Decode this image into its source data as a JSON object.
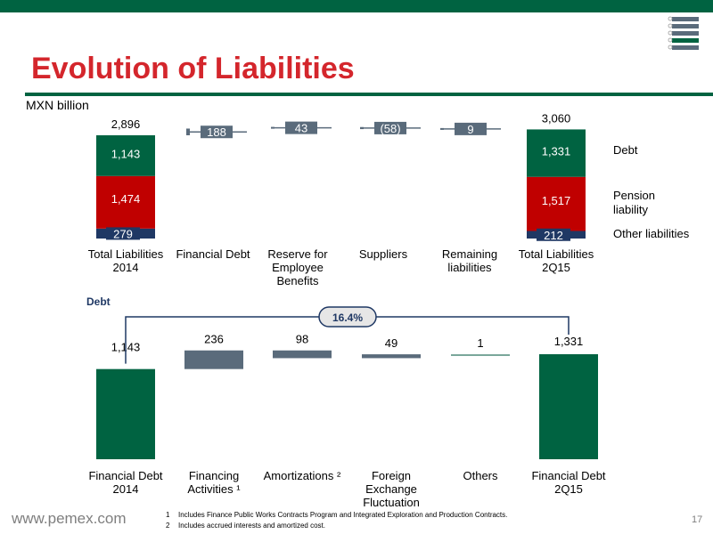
{
  "title": "Evolution of Liabilities",
  "unit": "MXN billion",
  "colors": {
    "green": "#006341",
    "red": "#c00000",
    "navy": "#1f3864",
    "gray": "#5a6b7b",
    "title_red": "#d4262c"
  },
  "legend": [
    "Debt",
    "Pension liability",
    "Other liabilities"
  ],
  "debt_heading": "Debt",
  "growth_label": "16.4%",
  "site": "www.pemex.com",
  "page_number": "17",
  "footnotes": [
    {
      "num": "1",
      "text": "Includes Finance Public Works Contracts Program and Integrated Exploration and Production Contracts."
    },
    {
      "num": "2",
      "text": "Includes accrued interests and amortized cost."
    }
  ],
  "chart_data": [
    {
      "type": "bar",
      "title": "",
      "ylabel": "MXN billion",
      "categories": [
        "Total Liabilities 2014",
        "Financial Debt",
        "Reserve for Employee Benefits",
        "Suppliers",
        "Remaining liabilities",
        "Total Liabilities 2Q15"
      ],
      "totals": [
        {
          "category": "Total Liabilities 2014",
          "total": 2896,
          "total_label": "2,896",
          "segments": [
            {
              "name": "Other liabilities",
              "value": 279,
              "label": "279"
            },
            {
              "name": "Pension liability",
              "value": 1474,
              "label": "1,474"
            },
            {
              "name": "Debt",
              "value": 1143,
              "label": "1,143"
            }
          ]
        },
        {
          "category": "Total Liabilities 2Q15",
          "total": 3060,
          "total_label": "3,060",
          "segments": [
            {
              "name": "Other liabilities",
              "value": 212,
              "label": "212"
            },
            {
              "name": "Pension liability",
              "value": 1517,
              "label": "1,517"
            },
            {
              "name": "Debt",
              "value": 1331,
              "label": "1,331"
            }
          ]
        }
      ],
      "changes": [
        {
          "category": "Financial Debt",
          "value": 188,
          "label": "188"
        },
        {
          "category": "Reserve for Employee Benefits",
          "value": 43,
          "label": "43"
        },
        {
          "category": "Suppliers",
          "value": -58,
          "label": "(58)"
        },
        {
          "category": "Remaining liabilities",
          "value": 9,
          "label": "9"
        }
      ]
    },
    {
      "type": "bar",
      "title": "Debt",
      "categories": [
        "Financial Debt 2014",
        "Financing Activities 1",
        "Amortizations 2",
        "Foreign Exchange Fluctuation",
        "Others",
        "Financial Debt 2Q15"
      ],
      "start": {
        "value": 1143,
        "label": "1,143"
      },
      "end": {
        "value": 1331,
        "label": "1,331"
      },
      "changes": [
        {
          "category": "Financing Activities",
          "value": 236,
          "label": "236"
        },
        {
          "category": "Amortizations",
          "value": -98,
          "label": "98"
        },
        {
          "category": "Foreign Exchange Fluctuation",
          "value": 49,
          "label": "49"
        },
        {
          "category": "Others",
          "value": 1,
          "label": "1"
        }
      ],
      "growth": "16.4%"
    }
  ],
  "cat_labels_top": [
    [
      "Total Liabilities",
      "2014"
    ],
    [
      "Financial Debt"
    ],
    [
      "Reserve for",
      "Employee",
      "Benefits"
    ],
    [
      "Suppliers"
    ],
    [
      "Remaining",
      "liabilities"
    ],
    [
      "Total Liabilities",
      "2Q15"
    ]
  ],
  "cat_labels_bottom": [
    [
      "Financial Debt",
      "2014"
    ],
    [
      "Financing",
      "Activities ¹"
    ],
    [
      "Amortizations ²"
    ],
    [
      "Foreign",
      "Exchange",
      "Fluctuation"
    ],
    [
      "Others"
    ],
    [
      "Financial Debt",
      "2Q15"
    ]
  ]
}
